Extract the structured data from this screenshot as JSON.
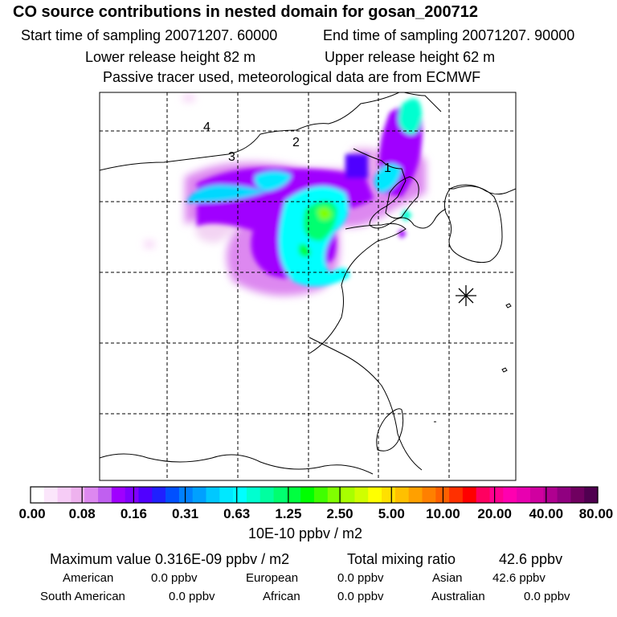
{
  "header": {
    "title": "CO  source contributions in nested domain for gosan_200712",
    "start_label": "Start time of sampling 20071207. 60000",
    "end_label": "End time of sampling 20071207. 90000",
    "lower_label": "Lower release height   82 m",
    "upper_label": "Upper release height   62 m",
    "note": "Passive tracer used, meteorological data are from ECMWF"
  },
  "map": {
    "markers": [
      "1",
      "2",
      "3",
      "4"
    ],
    "station_symbol": "asterisk"
  },
  "colorbar": {
    "ticks": [
      "0.00",
      "0.08",
      "0.16",
      "0.31",
      "0.63",
      "1.25",
      "2.50",
      "5.00",
      "10.00",
      "20.00",
      "40.00",
      "80.00"
    ],
    "unit": "10E-10 ppbv / m2",
    "colors": [
      "#ffffff",
      "#fbe6fb",
      "#f6ccf6",
      "#eeb2ee",
      "#dd88f0",
      "#c060f0",
      "#a000ff",
      "#8000ff",
      "#5000ff",
      "#2020ff",
      "#0050ff",
      "#0080ff",
      "#00a0ff",
      "#00c8ff",
      "#00e8ff",
      "#00ffff",
      "#00ffd0",
      "#00ffa0",
      "#00ff70",
      "#00ff40",
      "#00ff00",
      "#40ff00",
      "#80ff00",
      "#a8ff00",
      "#d0ff00",
      "#ffff00",
      "#ffe000",
      "#ffc000",
      "#ffa000",
      "#ff8000",
      "#ff6000",
      "#ff3000",
      "#ff0000",
      "#ff0060",
      "#ff0090",
      "#ff00b0",
      "#e800b0",
      "#d000a0",
      "#b00090",
      "#900080",
      "#700060",
      "#500050"
    ]
  },
  "stats": {
    "max_label": "Maximum value  0.316E-09 ppbv / m2",
    "total_label": "Total mixing ratio",
    "total_value": "42.6 ppbv",
    "regions": [
      {
        "name": "American",
        "value": "0.0 ppbv"
      },
      {
        "name": "European",
        "value": "0.0 ppbv"
      },
      {
        "name": "Asian",
        "value": "42.6 ppbv"
      },
      {
        "name": "South American",
        "value": "0.0 ppbv"
      },
      {
        "name": "African",
        "value": "0.0 ppbv"
      },
      {
        "name": "Australian",
        "value": "0.0 ppbv"
      }
    ]
  }
}
